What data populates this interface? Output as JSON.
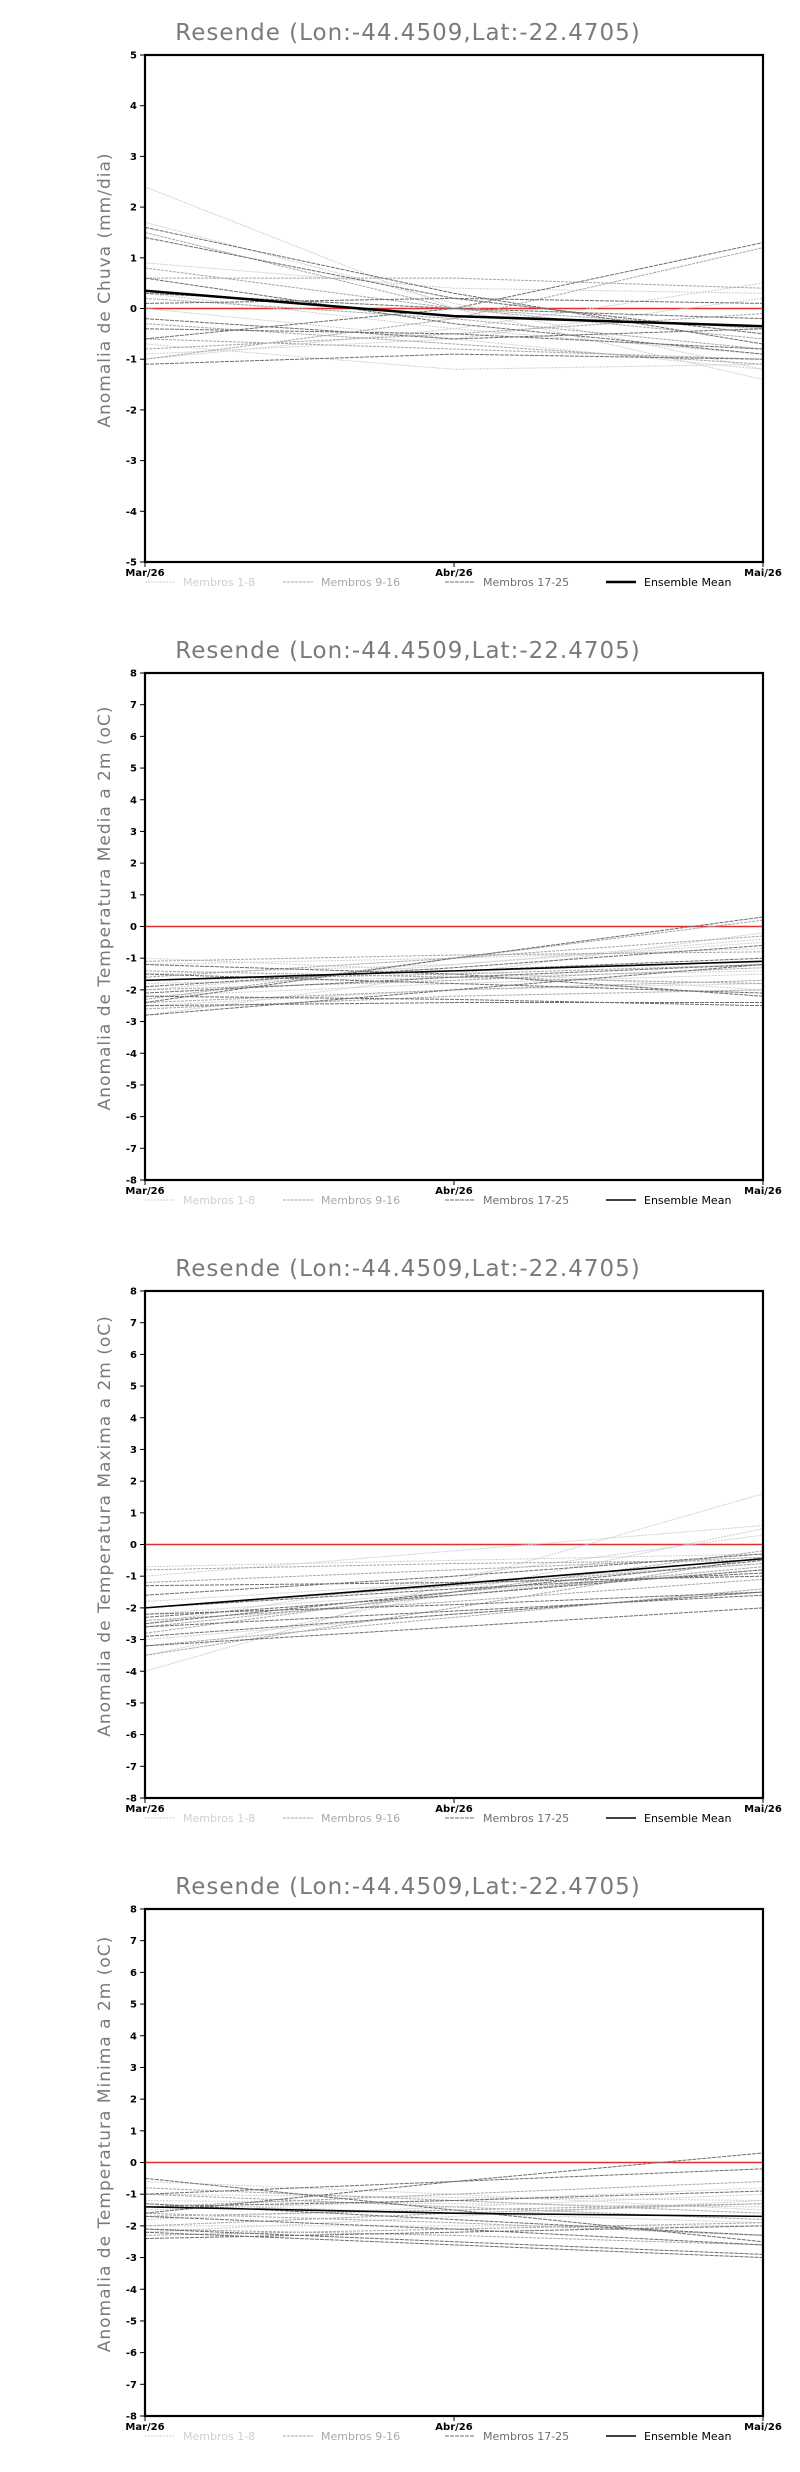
{
  "chart_data": [
    {
      "type": "line",
      "title": "Resende (Lon:-44.4509,Lat:-22.4705)",
      "ylabel": "Anomalia de Chuva (mm/dia)",
      "xlabel": "",
      "categories": [
        "Mar/26",
        "Abr/26",
        "Mai/26"
      ],
      "ylim": [
        -5,
        5
      ],
      "yticks": [
        5,
        4,
        3,
        2,
        1,
        0,
        -1,
        -2,
        -3,
        -4,
        -5
      ],
      "zero_line_color": "#e03030",
      "legend": [
        {
          "name": "Membros 1-8",
          "color": "#cfcfcf"
        },
        {
          "name": "Membros 9-16",
          "color": "#a8a8a8"
        },
        {
          "name": "Membros 17-25",
          "color": "#6e6e6e"
        },
        {
          "name": "Ensemble Mean",
          "color": "#000000"
        }
      ],
      "members": {
        "group1": [
          [
            2.4,
            0.0,
            -1.4
          ],
          [
            1.7,
            0.1,
            -1.2
          ],
          [
            -0.7,
            -1.2,
            -1.1
          ],
          [
            0.3,
            -0.4,
            -0.9
          ],
          [
            -1.0,
            -0.4,
            0.5
          ],
          [
            0.0,
            -0.6,
            -1.2
          ],
          [
            -0.9,
            -0.6,
            0.2
          ],
          [
            0.9,
            0.4,
            0.3
          ]
        ],
        "group2": [
          [
            1.5,
            0.0,
            -0.6
          ],
          [
            -0.6,
            -0.8,
            -1.0
          ],
          [
            0.6,
            0.6,
            0.4
          ],
          [
            -1.0,
            -0.2,
            1.2
          ],
          [
            0.2,
            -0.2,
            -0.8
          ],
          [
            -0.3,
            -0.7,
            -1.1
          ],
          [
            0.8,
            0.0,
            -0.4
          ],
          [
            -0.8,
            -0.5,
            -0.1
          ]
        ],
        "group3": [
          [
            1.4,
            0.2,
            -0.5
          ],
          [
            0.1,
            0.2,
            0.1
          ],
          [
            -0.4,
            -0.5,
            -0.8
          ],
          [
            -0.6,
            0.0,
            1.3
          ],
          [
            0.6,
            -0.3,
            -0.9
          ],
          [
            1.6,
            0.3,
            -0.7
          ],
          [
            -0.2,
            -0.6,
            -0.4
          ],
          [
            0.3,
            0.0,
            -0.2
          ],
          [
            -1.1,
            -0.9,
            -1.0
          ]
        ]
      },
      "ensemble_mean": [
        0.35,
        -0.15,
        -0.35
      ]
    },
    {
      "type": "line",
      "title": "Resende (Lon:-44.4509,Lat:-22.4705)",
      "ylabel": "Anomalia de Temperatura Media a 2m (oC)",
      "xlabel": "",
      "categories": [
        "Mar/26",
        "Abr/26",
        "Mai/26"
      ],
      "ylim": [
        -8,
        8
      ],
      "yticks": [
        8,
        7,
        6,
        5,
        4,
        3,
        2,
        1,
        0,
        -1,
        -2,
        -3,
        -4,
        -5,
        -6,
        -7,
        -8
      ],
      "zero_line_color": "#e03030",
      "legend": [
        {
          "name": "Membros 1-8",
          "color": "#cfcfcf"
        },
        {
          "name": "Membros 9-16",
          "color": "#a8a8a8"
        },
        {
          "name": "Membros 17-25",
          "color": "#6e6e6e"
        },
        {
          "name": "Ensemble Mean",
          "color": "#000000"
        }
      ],
      "members": {
        "group1": [
          [
            -2.8,
            -1.5,
            -0.2
          ],
          [
            -1.2,
            -1.0,
            -0.7
          ],
          [
            -2.2,
            -1.8,
            -1.5
          ],
          [
            -1.5,
            -1.2,
            -0.5
          ],
          [
            -2.5,
            -2.0,
            -1.8
          ],
          [
            -1.8,
            -1.6,
            -1.4
          ],
          [
            -1.0,
            -1.4,
            -2.0
          ],
          [
            -2.0,
            -1.2,
            -0.4
          ]
        ],
        "group2": [
          [
            -2.3,
            -1.0,
            0.2
          ],
          [
            -1.4,
            -1.6,
            -1.8
          ],
          [
            -2.6,
            -2.2,
            -2.0
          ],
          [
            -1.7,
            -1.5,
            -1.2
          ],
          [
            -1.1,
            -0.9,
            -0.8
          ],
          [
            -2.0,
            -1.7,
            -1.3
          ],
          [
            -2.4,
            -2.0,
            -1.7
          ],
          [
            -1.6,
            -1.0,
            -0.3
          ]
        ],
        "group3": [
          [
            -2.4,
            -1.0,
            0.3
          ],
          [
            -1.7,
            -1.4,
            -1.0
          ],
          [
            -2.5,
            -2.4,
            -2.4
          ],
          [
            -1.2,
            -1.5,
            -2.2
          ],
          [
            -2.1,
            -1.6,
            -1.2
          ],
          [
            -2.8,
            -2.0,
            -1.2
          ],
          [
            -1.5,
            -1.8,
            -2.1
          ],
          [
            -1.9,
            -1.3,
            -0.6
          ],
          [
            -2.2,
            -2.3,
            -2.5
          ]
        ]
      },
      "ensemble_mean": [
        -1.7,
        -1.4,
        -1.1
      ]
    },
    {
      "type": "line",
      "title": "Resende (Lon:-44.4509,Lat:-22.4705)",
      "ylabel": "Anomalia de Temperatura Maxima a 2m (oC)",
      "xlabel": "",
      "categories": [
        "Mar/26",
        "Abr/26",
        "Mai/26"
      ],
      "ylim": [
        -8,
        8
      ],
      "yticks": [
        8,
        7,
        6,
        5,
        4,
        3,
        2,
        1,
        0,
        -1,
        -2,
        -3,
        -4,
        -5,
        -6,
        -7,
        -8
      ],
      "zero_line_color": "#e03030",
      "legend": [
        {
          "name": "Membros 1-8",
          "color": "#cfcfcf"
        },
        {
          "name": "Membros 9-16",
          "color": "#a8a8a8"
        },
        {
          "name": "Membros 17-25",
          "color": "#6e6e6e"
        },
        {
          "name": "Ensemble Mean",
          "color": "#000000"
        }
      ],
      "members": {
        "group1": [
          [
            -4.0,
            -1.2,
            1.6
          ],
          [
            -0.7,
            -0.5,
            -0.3
          ],
          [
            -3.5,
            -1.5,
            0.5
          ],
          [
            -2.2,
            -1.5,
            -0.8
          ],
          [
            -1.0,
            -0.2,
            0.6
          ],
          [
            -3.0,
            -2.2,
            -1.5
          ],
          [
            -2.5,
            -1.0,
            0.3
          ],
          [
            -1.8,
            -1.2,
            -0.6
          ]
        ],
        "group2": [
          [
            -2.8,
            -1.5,
            -0.2
          ],
          [
            -2.0,
            -1.3,
            -0.6
          ],
          [
            -3.2,
            -2.3,
            -1.4
          ],
          [
            -1.2,
            -0.8,
            -0.4
          ],
          [
            -2.4,
            -1.8,
            -1.1
          ],
          [
            -2.6,
            -1.6,
            -0.7
          ],
          [
            -3.5,
            -2.0,
            -0.4
          ],
          [
            -0.8,
            -0.6,
            -0.5
          ]
        ],
        "group3": [
          [
            -2.3,
            -1.6,
            -0.8
          ],
          [
            -3.2,
            -2.6,
            -2.0
          ],
          [
            -2.0,
            -1.4,
            -0.9
          ],
          [
            -2.6,
            -2.1,
            -1.6
          ],
          [
            -1.6,
            -1.0,
            -0.3
          ],
          [
            -2.2,
            -1.9,
            -1.5
          ],
          [
            -2.9,
            -2.2,
            -1.5
          ],
          [
            -1.3,
            -1.2,
            -1.0
          ],
          [
            -2.5,
            -1.5,
            -0.5
          ]
        ]
      },
      "ensemble_mean": [
        -2.0,
        -1.25,
        -0.45
      ]
    },
    {
      "type": "line",
      "title": "Resende (Lon:-44.4509,Lat:-22.4705)",
      "ylabel": "Anomalia de Temperatura Minima a 2m (oC)",
      "xlabel": "",
      "categories": [
        "Mar/26",
        "Abr/26",
        "Mai/26"
      ],
      "ylim": [
        -8,
        8
      ],
      "yticks": [
        8,
        7,
        6,
        5,
        4,
        3,
        2,
        1,
        0,
        -1,
        -2,
        -3,
        -4,
        -5,
        -6,
        -7,
        -8
      ],
      "zero_line_color": "#e03030",
      "legend": [
        {
          "name": "Membros 1-8",
          "color": "#cfcfcf"
        },
        {
          "name": "Membros 9-16",
          "color": "#a8a8a8"
        },
        {
          "name": "Membros 17-25",
          "color": "#6e6e6e"
        },
        {
          "name": "Ensemble Mean",
          "color": "#000000"
        }
      ],
      "members": {
        "group1": [
          [
            -1.0,
            -1.1,
            -1.2
          ],
          [
            -1.8,
            -1.4,
            -1.0
          ],
          [
            -1.3,
            -1.6,
            -1.9
          ],
          [
            -2.2,
            -1.7,
            -1.2
          ],
          [
            -0.6,
            -1.0,
            -1.5
          ],
          [
            -1.5,
            -1.2,
            -0.8
          ],
          [
            -2.0,
            -2.0,
            -2.0
          ],
          [
            -1.2,
            -1.3,
            -1.4
          ]
        ],
        "group2": [
          [
            -1.4,
            -1.0,
            -0.6
          ],
          [
            -2.1,
            -2.3,
            -2.6
          ],
          [
            -1.0,
            -1.4,
            -1.8
          ],
          [
            -1.7,
            -1.5,
            -1.3
          ],
          [
            -2.3,
            -2.1,
            -1.9
          ],
          [
            -1.6,
            -1.9,
            -2.3
          ],
          [
            -0.8,
            -1.2,
            -1.6
          ],
          [
            -2.0,
            -1.6,
            -1.3
          ]
        ],
        "group3": [
          [
            -1.6,
            -0.6,
            0.3
          ],
          [
            -2.1,
            -2.5,
            -2.9
          ],
          [
            -0.5,
            -1.5,
            -2.5
          ],
          [
            -1.3,
            -1.8,
            -2.3
          ],
          [
            -2.2,
            -2.6,
            -3.0
          ],
          [
            -1.0,
            -0.6,
            -0.2
          ],
          [
            -1.7,
            -2.1,
            -2.6
          ],
          [
            -1.4,
            -1.2,
            -0.9
          ],
          [
            -2.4,
            -2.2,
            -2.0
          ]
        ]
      },
      "ensemble_mean": [
        -1.4,
        -1.6,
        -1.7
      ]
    }
  ]
}
